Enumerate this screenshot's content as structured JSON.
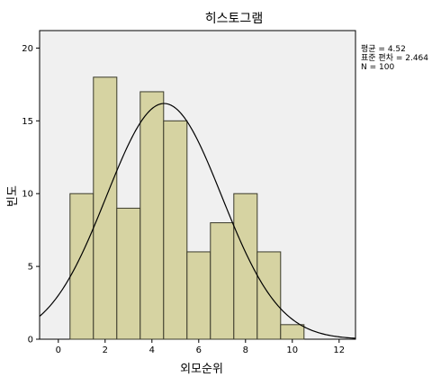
{
  "chart_data": {
    "type": "bar",
    "title": "히스토그램",
    "xlabel": "외모순위",
    "ylabel": "빈도",
    "bins": [
      {
        "start": 0.5,
        "end": 1.5,
        "count": 10
      },
      {
        "start": 1.5,
        "end": 2.5,
        "count": 18
      },
      {
        "start": 2.5,
        "end": 3.5,
        "count": 9
      },
      {
        "start": 3.5,
        "end": 4.5,
        "count": 17
      },
      {
        "start": 4.5,
        "end": 5.5,
        "count": 15
      },
      {
        "start": 5.5,
        "end": 6.5,
        "count": 6
      },
      {
        "start": 6.5,
        "end": 7.5,
        "count": 8
      },
      {
        "start": 7.5,
        "end": 8.5,
        "count": 10
      },
      {
        "start": 8.5,
        "end": 9.5,
        "count": 6
      },
      {
        "start": 9.5,
        "end": 10.5,
        "count": 1
      }
    ],
    "xlim": [
      -0.8,
      12.7
    ],
    "ylim": [
      0,
      21.2
    ],
    "x_ticks": [
      0,
      2,
      4,
      6,
      8,
      10,
      12
    ],
    "y_ticks": [
      0,
      5,
      10,
      15,
      20
    ],
    "normal_curve": {
      "mean": 4.52,
      "sd": 2.464,
      "n": 100,
      "bin_width": 1
    },
    "stats": {
      "mean_line": "평균 = 4.52",
      "sd_line": "표준 편차 = 2.464",
      "n_line": "N = 100"
    },
    "grid": false,
    "legend": "top-right"
  },
  "colors": {
    "plot_background": "#f0f0f0",
    "bar_fill": "#d6d3a2",
    "bar_stroke": "#3a3a2a",
    "curve": "#000000"
  }
}
